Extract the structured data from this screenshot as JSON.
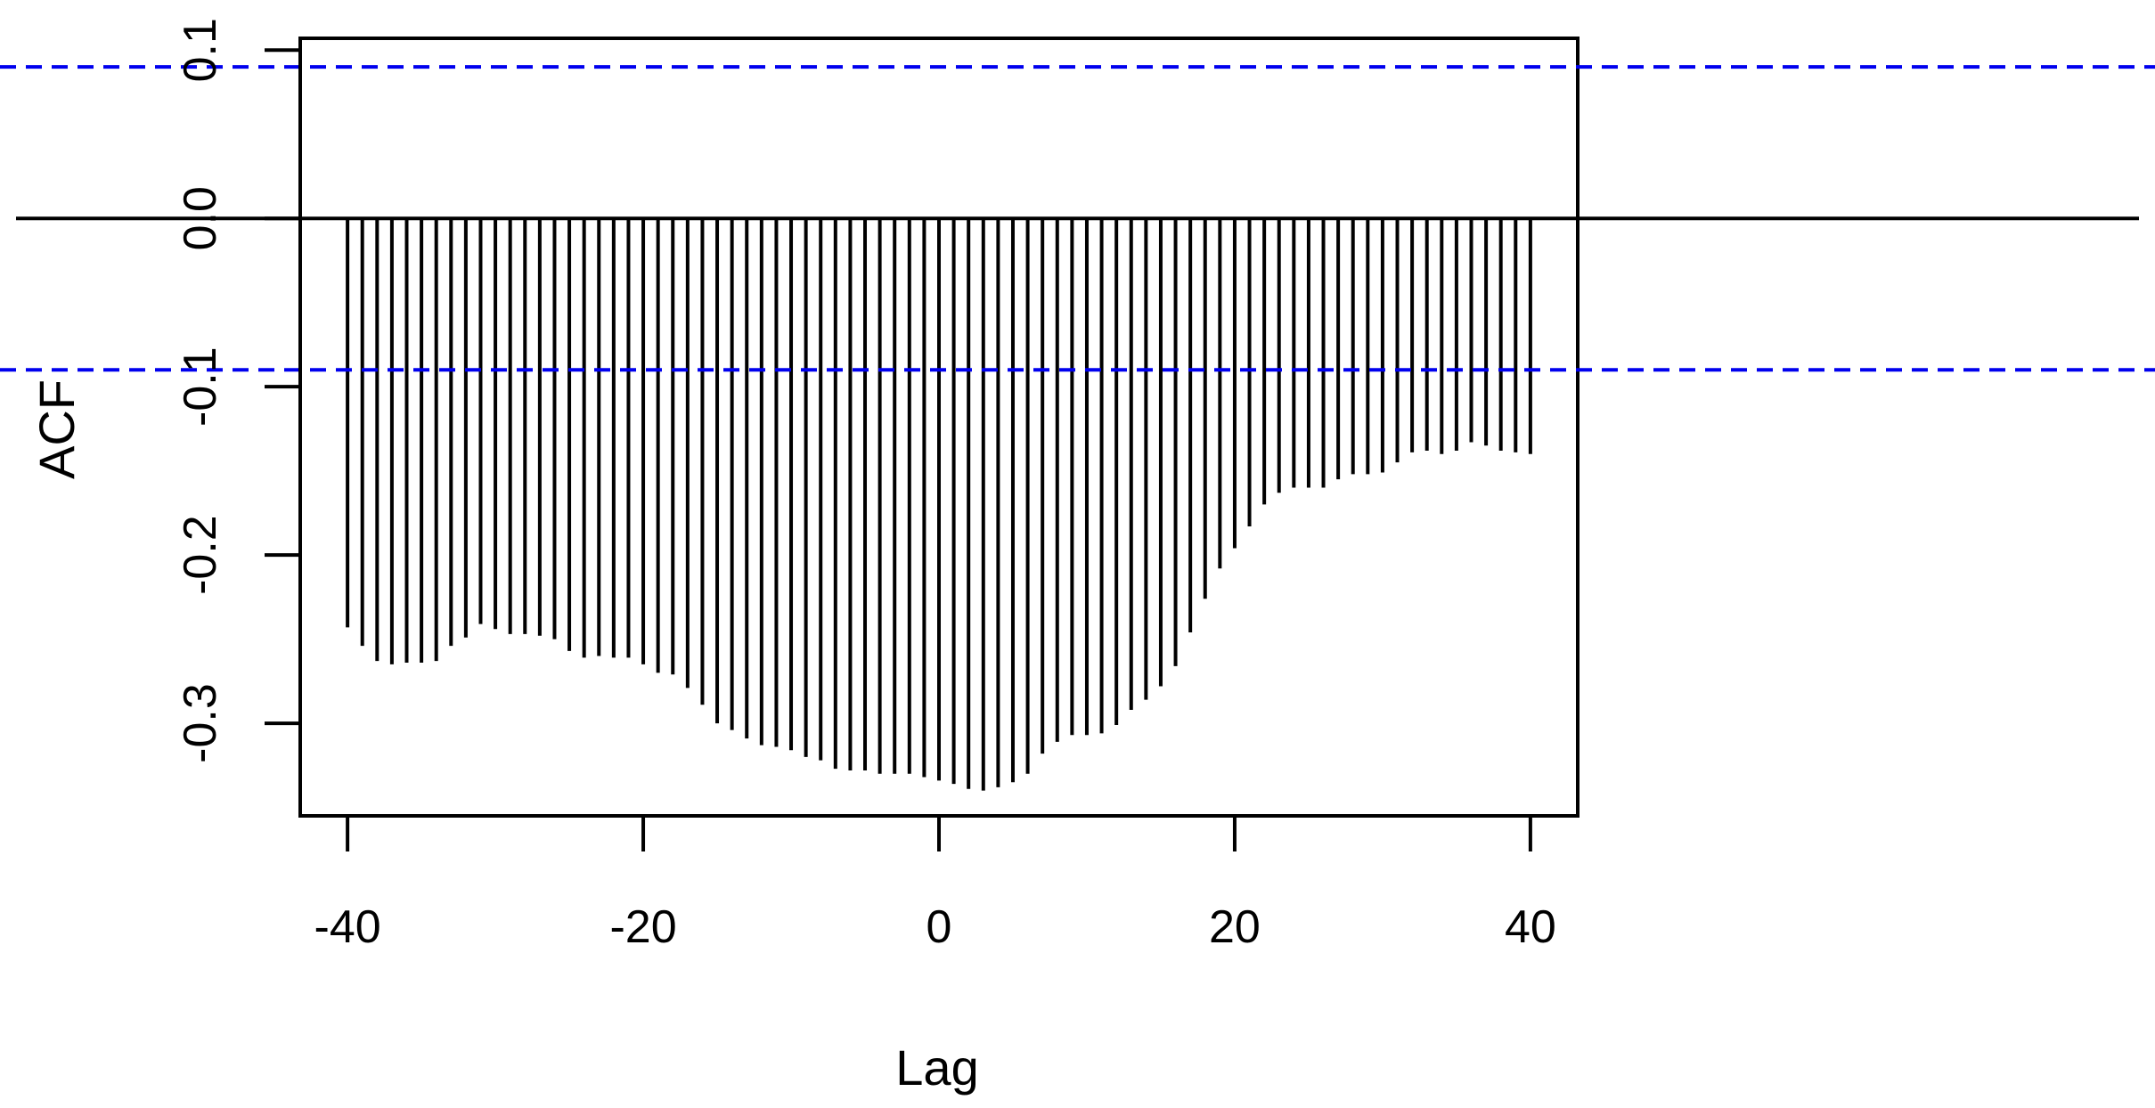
{
  "chart_data": {
    "type": "bar",
    "title": "",
    "xlabel": "Lag",
    "ylabel": "ACF",
    "xlim": [
      -43.2,
      43.2
    ],
    "ylim": [
      -0.355,
      0.107
    ],
    "x_ticks": [
      -40,
      -20,
      0,
      20,
      40
    ],
    "x_tick_labels": [
      "-40",
      "-20",
      "0",
      "20",
      "40"
    ],
    "y_ticks": [
      -0.3,
      -0.2,
      -0.1,
      0.0,
      0.1
    ],
    "y_tick_labels": [
      "-0.3",
      "-0.2",
      "-0.1",
      "0.0",
      "0.1"
    ],
    "confidence_bounds": [
      0.09,
      -0.09
    ],
    "grid": false,
    "colors": {
      "bars": "#000000",
      "confidence": "#0000ee",
      "zero_line": "#000000"
    },
    "x": [
      -40,
      -39,
      -38,
      -37,
      -36,
      -35,
      -34,
      -33,
      -32,
      -31,
      -30,
      -29,
      -28,
      -27,
      -26,
      -25,
      -24,
      -23,
      -22,
      -21,
      -20,
      -19,
      -18,
      -17,
      -16,
      -15,
      -14,
      -13,
      -12,
      -11,
      -10,
      -9,
      -8,
      -7,
      -6,
      -5,
      -4,
      -3,
      -2,
      -1,
      0,
      1,
      2,
      3,
      4,
      5,
      6,
      7,
      8,
      9,
      10,
      11,
      12,
      13,
      14,
      15,
      16,
      17,
      18,
      19,
      20,
      21,
      22,
      23,
      24,
      25,
      26,
      27,
      28,
      29,
      30,
      31,
      32,
      33,
      34,
      35,
      36,
      37,
      38,
      39,
      40
    ],
    "values": [
      -0.243,
      -0.254,
      -0.263,
      -0.265,
      -0.264,
      -0.264,
      -0.263,
      -0.254,
      -0.249,
      -0.241,
      -0.244,
      -0.247,
      -0.247,
      -0.248,
      -0.25,
      -0.257,
      -0.261,
      -0.26,
      -0.261,
      -0.261,
      -0.265,
      -0.27,
      -0.271,
      -0.279,
      -0.289,
      -0.3,
      -0.304,
      -0.309,
      -0.313,
      -0.314,
      -0.316,
      -0.32,
      -0.322,
      -0.327,
      -0.328,
      -0.328,
      -0.33,
      -0.33,
      -0.33,
      -0.332,
      -0.334,
      -0.336,
      -0.339,
      -0.34,
      -0.338,
      -0.335,
      -0.33,
      -0.318,
      -0.311,
      -0.307,
      -0.307,
      -0.306,
      -0.301,
      -0.292,
      -0.286,
      -0.278,
      -0.266,
      -0.246,
      -0.226,
      -0.208,
      -0.196,
      -0.183,
      -0.17,
      -0.163,
      -0.16,
      -0.16,
      -0.16,
      -0.155,
      -0.152,
      -0.152,
      -0.151,
      -0.145,
      -0.139,
      -0.138,
      -0.14,
      -0.138,
      -0.133,
      -0.135,
      -0.138,
      -0.139,
      -0.14
    ]
  }
}
